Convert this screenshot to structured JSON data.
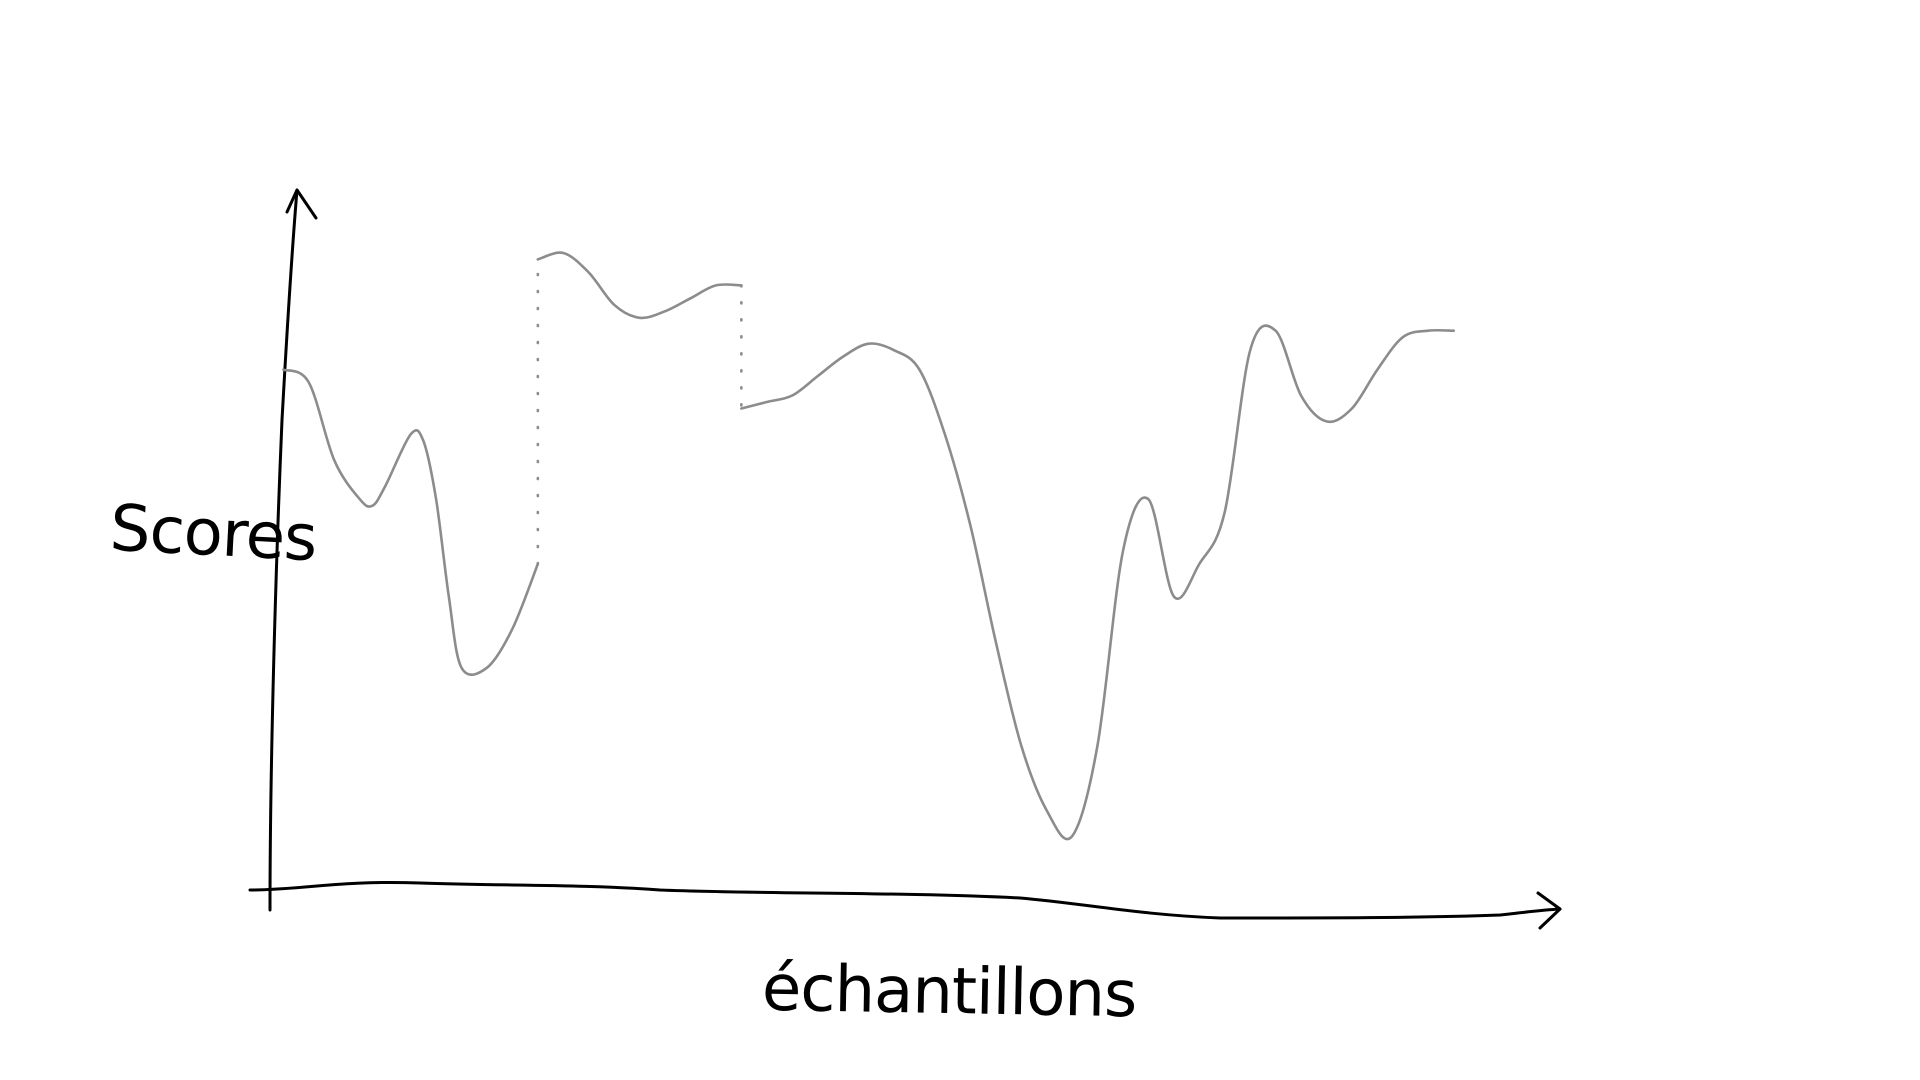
{
  "chart_data": {
    "type": "line",
    "title": "",
    "xlabel": "échantillons",
    "ylabel": "Scores",
    "grid": false,
    "legend": "none",
    "xlim": [
      0,
      100
    ],
    "ylim": [
      0,
      100
    ],
    "series_color": "#8c8c8c",
    "axis_color": "#000000",
    "series": [
      {
        "segment": "first",
        "x": [
          2,
          4,
          6,
          8,
          9,
          10,
          12,
          13,
          14,
          15,
          16,
          18,
          20,
          22
        ],
        "y": [
          80,
          78,
          66,
          60,
          59,
          62,
          70,
          69,
          60,
          45,
          34,
          34,
          40,
          50
        ]
      },
      {
        "segment": "raised",
        "x": [
          22,
          24,
          26,
          28,
          30,
          32,
          34,
          36,
          38
        ],
        "y": [
          97,
          98,
          95,
          90,
          88,
          89,
          91,
          93,
          93
        ]
      },
      {
        "segment": "last",
        "x": [
          38,
          40,
          42,
          44,
          46,
          48,
          50,
          52,
          54,
          56,
          58,
          60,
          62,
          64,
          66,
          68,
          70,
          72,
          74,
          76,
          78,
          80,
          82,
          84,
          86,
          88,
          90,
          92,
          94
        ],
        "y": [
          74,
          75,
          76,
          79,
          82,
          84,
          83,
          80,
          70,
          56,
          38,
          22,
          12,
          8,
          22,
          52,
          60,
          45,
          50,
          58,
          83,
          86,
          76,
          72,
          74,
          80,
          85,
          86,
          86
        ]
      }
    ],
    "connectors": [
      {
        "x": 22,
        "y_from": 50,
        "y_to": 97
      },
      {
        "x": 38,
        "y_from": 93,
        "y_to": 74
      }
    ]
  }
}
